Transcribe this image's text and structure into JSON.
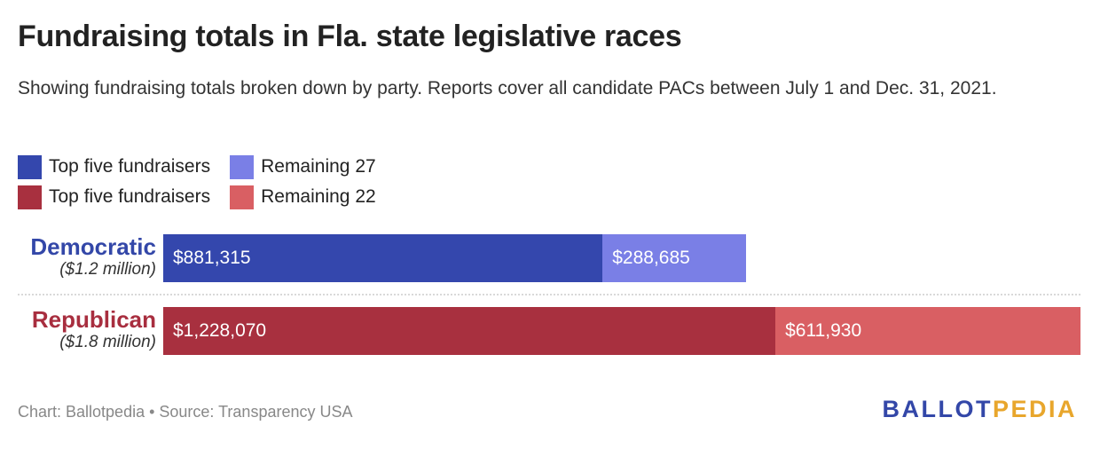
{
  "chart_data": {
    "type": "bar",
    "orientation": "horizontal",
    "stacked": true,
    "title": "Fundraising totals in Fla. state legislative races",
    "subtitle": "Showing fundraising totals broken down by party. Reports cover all candidate PACs between July 1 and Dec. 31, 2021.",
    "xlim": [
      0,
      1840000
    ],
    "grid": false,
    "legend_position": "top-left",
    "categories": [
      {
        "name": "Democratic",
        "total_label": "($1.2 million)",
        "color": "#3347a8"
      },
      {
        "name": "Republican",
        "total_label": "($1.8 million)",
        "color": "#a82e3f"
      }
    ],
    "series": [
      {
        "name": "Top five fundraisers",
        "party": "Democratic",
        "values": [
          881315,
          0
        ],
        "labels": [
          "$881,315",
          ""
        ],
        "color": "#3447ad"
      },
      {
        "name": "Remaining 27",
        "party": "Democratic",
        "values": [
          288685,
          0
        ],
        "labels": [
          "$288,685",
          ""
        ],
        "color": "#7a7fe6"
      },
      {
        "name": "Top five fundraisers",
        "party": "Republican",
        "values": [
          0,
          1228070
        ],
        "labels": [
          "",
          "$1,228,070"
        ],
        "color": "#a8303f"
      },
      {
        "name": "Remaining 22",
        "party": "Republican",
        "values": [
          0,
          611930
        ],
        "labels": [
          "",
          "$611,930"
        ],
        "color": "#d95f63"
      }
    ]
  },
  "legend": [
    {
      "label": "Top five fundraisers",
      "color": "#3447ad"
    },
    {
      "label": "Remaining 27",
      "color": "#7a7fe6"
    },
    {
      "label": "Top five fundraisers",
      "color": "#a8303f"
    },
    {
      "label": "Remaining 22",
      "color": "#d95f63"
    }
  ],
  "footer": {
    "source": "Chart: Ballotpedia • Source: Transparency USA",
    "brand_part1": "BALLOT",
    "brand_part2": "PEDIA",
    "brand_color1": "#3347a8",
    "brand_color2": "#e8a62c"
  }
}
